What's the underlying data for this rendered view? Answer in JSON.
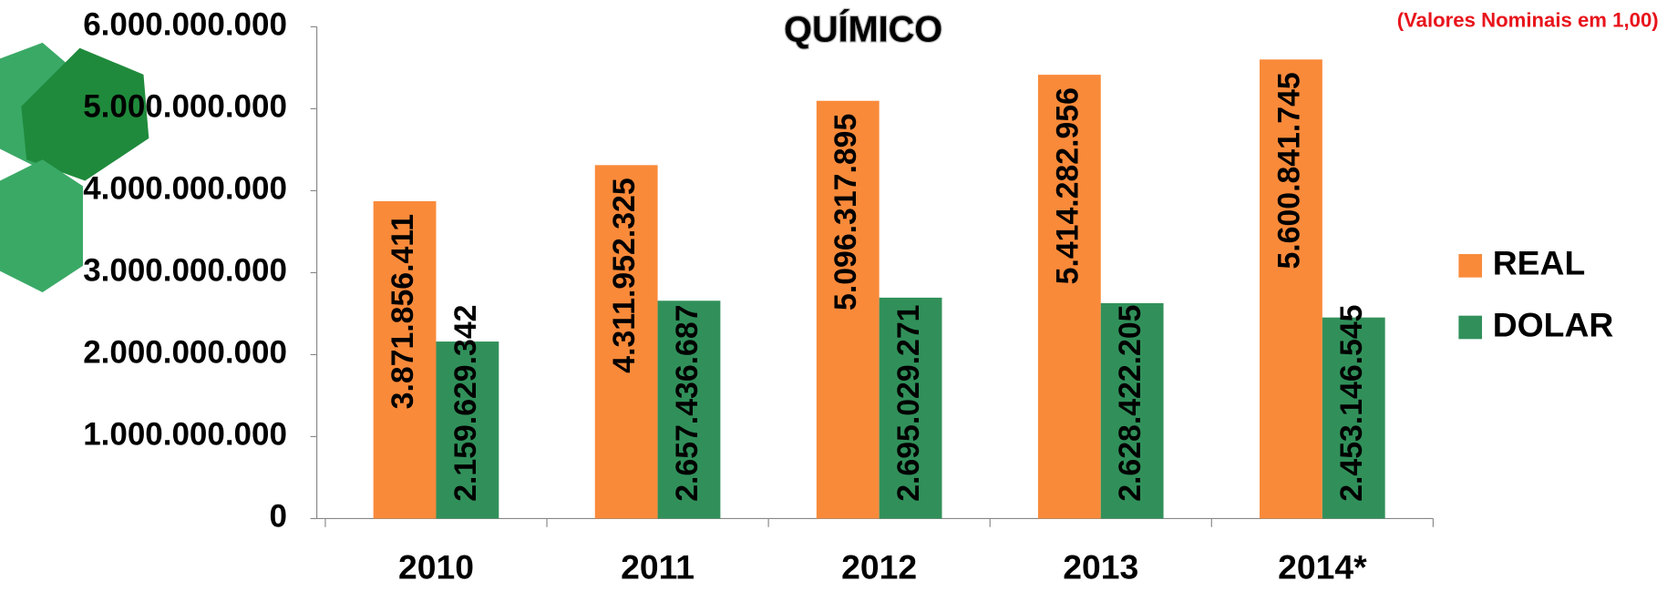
{
  "chart_data": {
    "type": "bar",
    "title": "QUÍMICO",
    "subtitle": "(Valores Nominais em 1,00)",
    "categories": [
      "2010",
      "2011",
      "2012",
      "2013",
      "2014*"
    ],
    "series": [
      {
        "name": "REAL",
        "color": "#f98a3a",
        "values": [
          3871856411,
          4311952325,
          5096317895,
          5414282956,
          5600841745
        ],
        "value_labels": [
          "3.871.856.411",
          "4.311.952.325",
          "5.096.317.895",
          "5.414.282.956",
          "5.600.841.745"
        ]
      },
      {
        "name": "DOLAR",
        "color": "#31905a",
        "values": [
          2159629342,
          2657436687,
          2695029271,
          2628422205,
          2453146545
        ],
        "value_labels": [
          "2.159.629.342",
          "2.657.436.687",
          "2.695.029.271",
          "2.628.422.205",
          "2.453.146.545"
        ]
      }
    ],
    "ylim": [
      0,
      6000000000
    ],
    "yticks": [
      0,
      {
        "value": 1000000000,
        "label": "1.000.000.000"
      },
      {
        "value": 2000000000,
        "label": "2.000.000.000"
      },
      {
        "value": 3000000000,
        "label": "3.000.000.000"
      },
      {
        "value": 4000000000,
        "label": "4.000.000.000"
      },
      {
        "value": 5000000000,
        "label": "5.000.000.000"
      },
      {
        "value": 6000000000,
        "label": "6.000.000.000"
      }
    ],
    "legend": "right",
    "grid": false
  }
}
